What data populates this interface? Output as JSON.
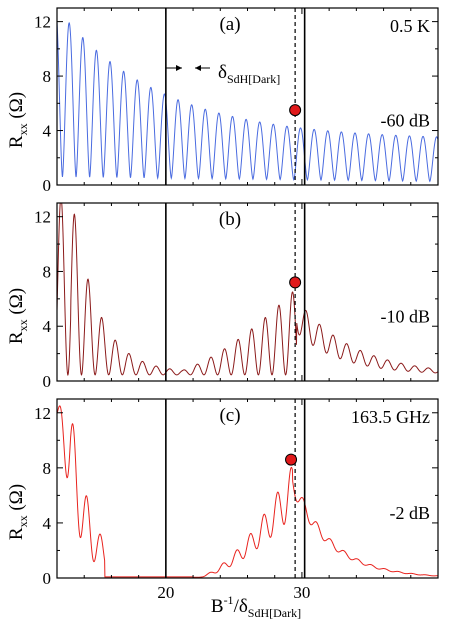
{
  "figure": {
    "x_axis": {
      "label_main": "B",
      "label_sup": "-1",
      "label_slash": "/δ",
      "label_sub": "SdH[Dark]",
      "tick_labels": [
        "20",
        "30"
      ]
    },
    "y_axis": {
      "label_main": "R",
      "label_sub": "xx",
      "label_unit": "(Ω)",
      "tick_labels": [
        "0",
        "4",
        "8",
        "12"
      ]
    },
    "annotation": {
      "delta_main": "δ",
      "delta_sub": "SdH[Dark]"
    }
  },
  "colors": {
    "panel_a": "#4a6be0",
    "panel_b": "#8b1a1a",
    "panel_c": "#e8231e",
    "marker": "#e0191b"
  },
  "chart_data": [
    {
      "type": "line",
      "panel": "(a)",
      "corner_label": "0.5 K",
      "power_label": "-60 dB",
      "series": [
        {
          "color": "#4a6be0",
          "kind": "sdh_dark"
        }
      ],
      "xlim": [
        12,
        40
      ],
      "ylim": [
        0,
        13
      ],
      "vertical_lines": [
        20,
        30.2
      ],
      "dashed_line": 29.5,
      "marker": {
        "x": 29.5,
        "y": 5.5
      }
    },
    {
      "type": "line",
      "panel": "(b)",
      "corner_label": "",
      "power_label": "-10 dB",
      "series": [
        {
          "color": "#8b1a1a",
          "kind": "mw_mid"
        }
      ],
      "xlim": [
        12,
        40
      ],
      "ylim": [
        0,
        13
      ],
      "vertical_lines": [
        20,
        30.2
      ],
      "dashed_line": 29.5,
      "marker": {
        "x": 29.5,
        "y": 7.2
      }
    },
    {
      "type": "line",
      "panel": "(c)",
      "corner_label": "163.5 GHz",
      "power_label": "-2 dB",
      "series": [
        {
          "color": "#e8231e",
          "kind": "mw_high"
        }
      ],
      "xlim": [
        12,
        40
      ],
      "ylim": [
        0,
        13
      ],
      "vertical_lines": [
        20,
        30.2
      ],
      "dashed_line": 29.5,
      "marker": {
        "x": 29.2,
        "y": 8.6
      }
    }
  ]
}
